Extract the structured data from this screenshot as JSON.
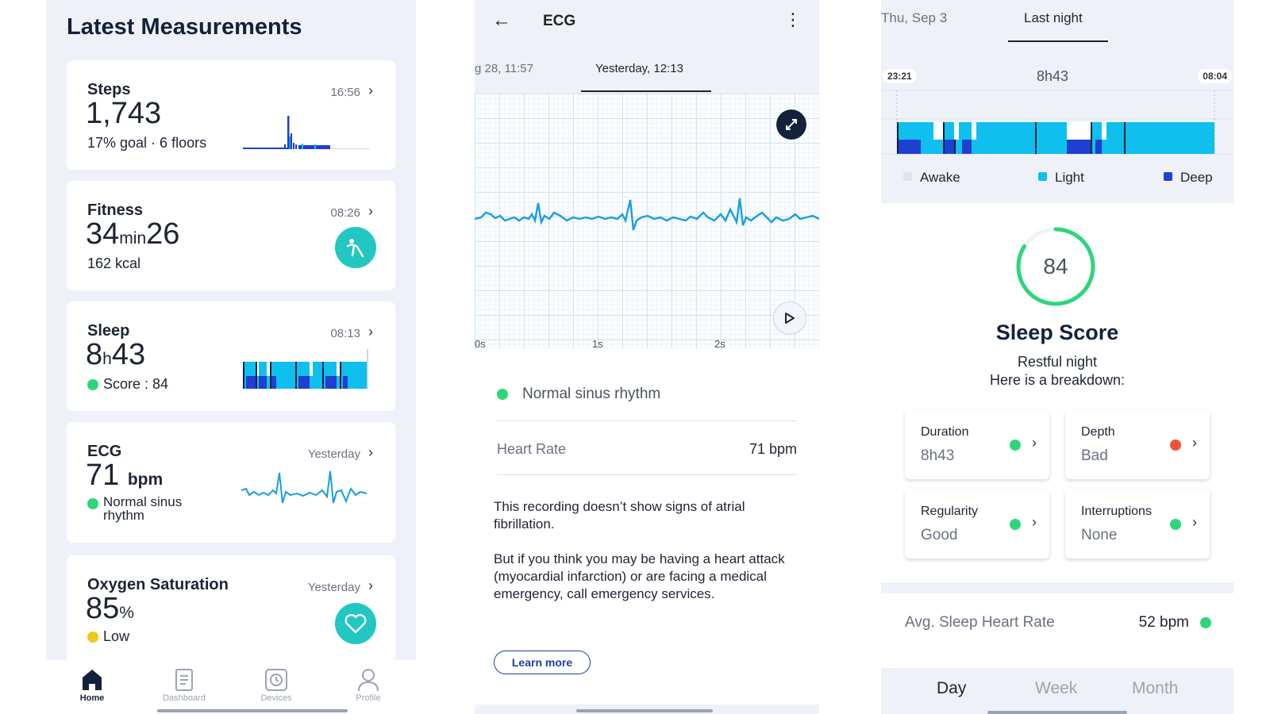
{
  "home": {
    "title": "Latest Measurements",
    "steps": {
      "title": "Steps",
      "time": "16:56",
      "value": "1,743",
      "sub": "17% goal · 6 floors"
    },
    "fitness": {
      "title": "Fitness",
      "time": "08:26",
      "value_main": "34",
      "value_unit": "min",
      "value_sec": "26",
      "sub": "162 kcal"
    },
    "sleep": {
      "title": "Sleep",
      "time": "08:13",
      "value_h": "8",
      "value_unit": "h",
      "value_m": "43",
      "sub": "Score : 84"
    },
    "ecg": {
      "title": "ECG",
      "time": "Yesterday",
      "value": "71",
      "unit": "bpm",
      "sub_line1": "Normal sinus",
      "sub_line2": "rhythm"
    },
    "oxygen": {
      "title": "Oxygen Saturation",
      "time": "Yesterday",
      "value": "85",
      "unit": "%",
      "sub": "Low"
    },
    "tabs": [
      {
        "label": "Home",
        "icon": "home-icon"
      },
      {
        "label": "Dashboard",
        "icon": "dashboard-icon"
      },
      {
        "label": "Devices",
        "icon": "watch-icon"
      },
      {
        "label": "Profile",
        "icon": "person-icon"
      }
    ]
  },
  "ecg_screen": {
    "title": "ECG",
    "tab_prev": "g 28, 11:57",
    "tab_current": "Yesterday, 12:13",
    "ticks": [
      "0s",
      "1s",
      "2s"
    ],
    "rhythm": "Normal sinus rhythm",
    "heart_rate_label": "Heart Rate",
    "heart_rate_value": "71 bpm",
    "para1": "This recording doesn’t show signs of atrial fibrillation.",
    "para2": "But if you think you may be having a heart attack (myocardial infarction) or are facing a medical emergency, call emergency services.",
    "learn_more": "Learn more"
  },
  "sleep_screen": {
    "tab_prev": "Thu, Sep 3",
    "tab_current": "Last night",
    "start_time": "23:21",
    "end_time": "08:04",
    "duration": "8h43",
    "legend": [
      "Awake",
      "Light",
      "Deep"
    ],
    "score": "84",
    "score_fraction": 0.84,
    "score_title": "Sleep Score",
    "score_sub1": "Restful night",
    "score_sub2": "Here is a breakdown:",
    "metrics": [
      {
        "label": "Duration",
        "value": "8h43",
        "status": "green"
      },
      {
        "label": "Depth",
        "value": "Bad",
        "status": "red"
      },
      {
        "label": "Regularity",
        "value": "Good",
        "status": "green"
      },
      {
        "label": "Interruptions",
        "value": "None",
        "status": "green"
      }
    ],
    "avg_hr_label": "Avg. Sleep Heart Rate",
    "avg_hr_value": "52 bpm",
    "periods": [
      "Day",
      "Week",
      "Month"
    ]
  },
  "colors": {
    "teal": "#22c7c1",
    "light": "#0fbfee",
    "deep": "#1e3fd0",
    "green": "#2ed67a",
    "red": "#f0533b",
    "yellow": "#f5c518",
    "ecg_line": "#1a9ee0",
    "navy": "#14213d"
  }
}
